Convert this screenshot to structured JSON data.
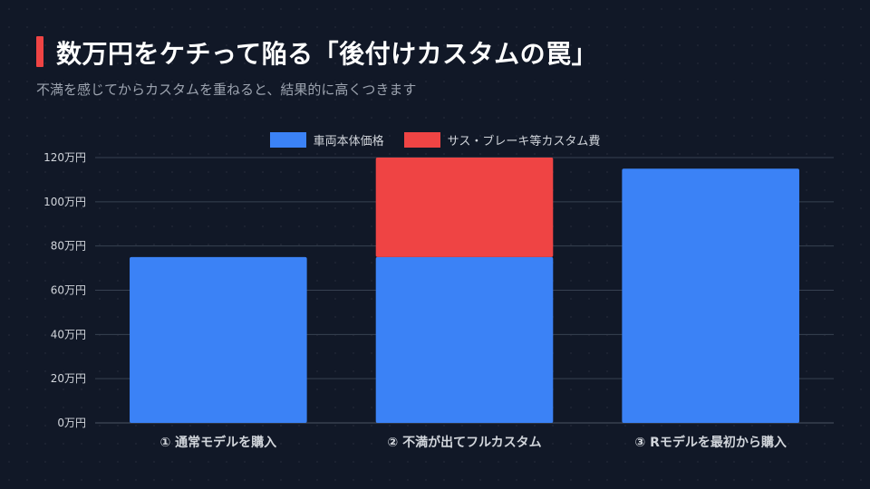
{
  "header": {
    "title": "数万円をケチって陥る「後付けカスタムの罠」",
    "subtitle": "不満を感じてからカスタムを重ねると、結果的に高くつきます"
  },
  "colors": {
    "accent": "#ef4444",
    "series_base": "#3b82f6",
    "series_custom": "#ef4444",
    "background": "#111827",
    "grid": "#374151"
  },
  "chart_data": {
    "type": "bar",
    "stacked": true,
    "categories": [
      "① 通常モデルを購入",
      "② 不満が出てフルカスタム",
      "③ Rモデルを最初から購入"
    ],
    "series": [
      {
        "name": "車両本体価格",
        "color": "#3b82f6",
        "values": [
          75,
          75,
          115
        ]
      },
      {
        "name": "サス・ブレーキ等カスタム費",
        "color": "#ef4444",
        "values": [
          0,
          45,
          0
        ]
      }
    ],
    "y_ticks": [
      0,
      20,
      40,
      60,
      80,
      100,
      120
    ],
    "y_tick_labels": [
      "0万円",
      "20万円",
      "40万円",
      "60万円",
      "80万円",
      "100万円",
      "120万円"
    ],
    "ylim": [
      0,
      120
    ],
    "grid": true,
    "legend_position": "top-center"
  }
}
